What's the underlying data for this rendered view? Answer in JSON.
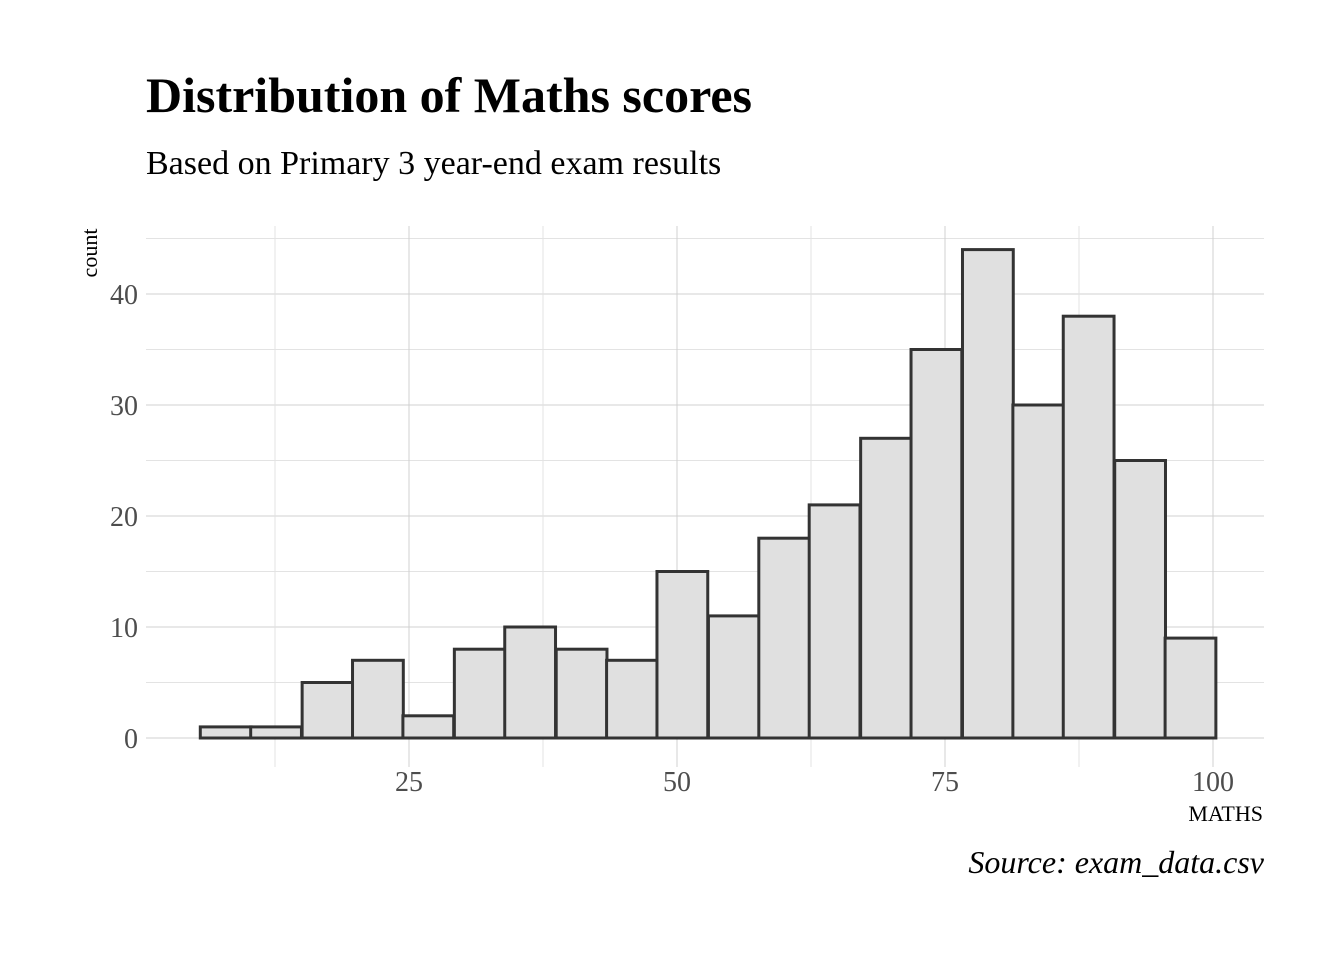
{
  "title": "Distribution of Maths scores",
  "subtitle": "Based on Primary 3 year-end exam results",
  "caption": "Source: exam_data.csv",
  "chart_data": {
    "type": "bar",
    "subtype": "histogram",
    "title": "Distribution of Maths scores",
    "subtitle": "Based on Primary 3 year-end exam results",
    "caption": "Source: exam_data.csv",
    "xlabel": "MATHS",
    "ylabel": "count",
    "xlim": [
      0.6,
      104.8
    ],
    "ylim": [
      0,
      45
    ],
    "x_ticks": [
      25,
      50,
      75,
      100
    ],
    "y_ticks": [
      0,
      10,
      20,
      30,
      40
    ],
    "grid": true,
    "legend": "none",
    "bin_width": 4.737,
    "bin_centers": [
      7.9,
      12.6,
      17.4,
      22.1,
      26.8,
      31.6,
      36.3,
      41.1,
      45.8,
      50.5,
      55.3,
      60.0,
      64.7,
      69.5,
      74.2,
      79.0,
      83.7,
      88.4,
      93.2,
      97.9
    ],
    "values": [
      1,
      1,
      5,
      7,
      2,
      8,
      10,
      8,
      7,
      15,
      11,
      18,
      21,
      27,
      35,
      44,
      30,
      38,
      25,
      9
    ],
    "bar_fill": "#e0e0e0",
    "bar_outline": "#333333"
  }
}
